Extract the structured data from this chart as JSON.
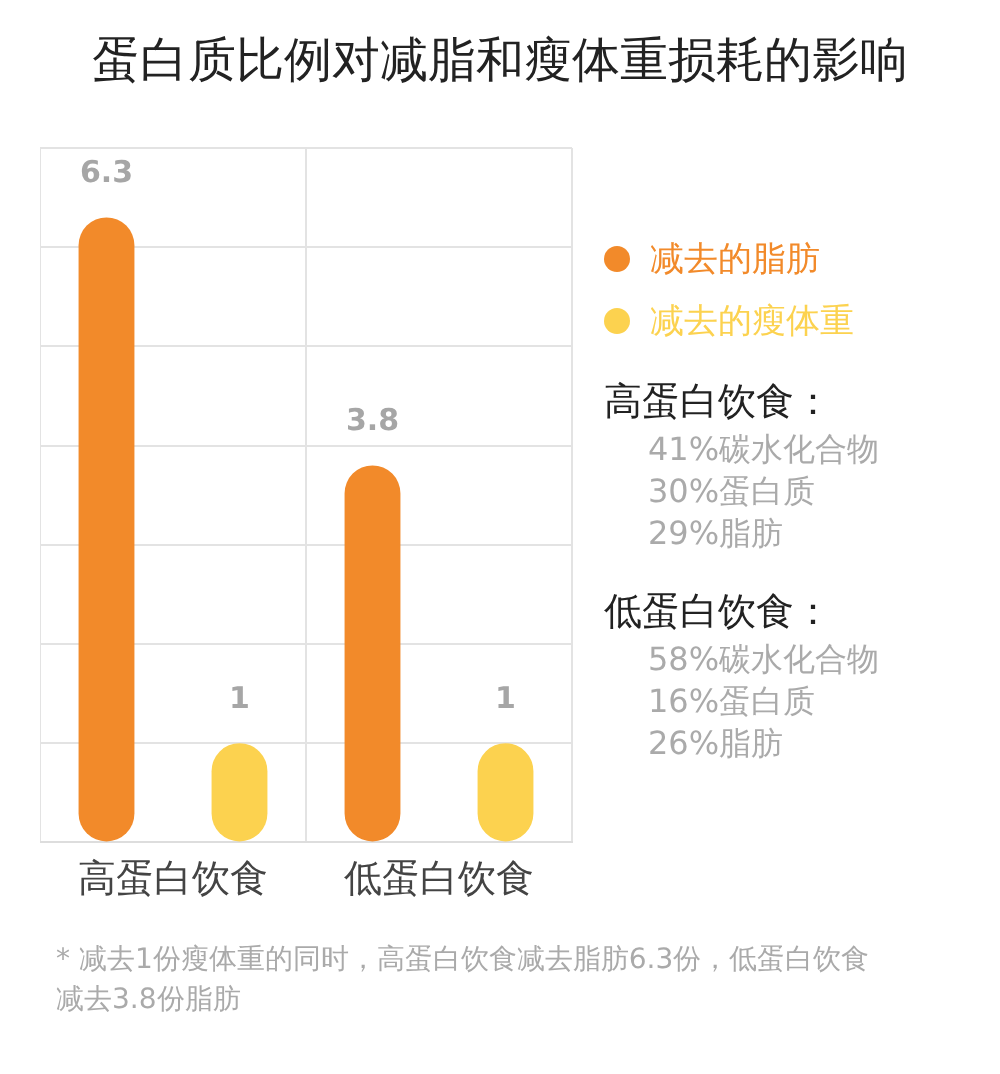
{
  "chart_data": {
    "type": "bar",
    "title": "蛋白质比例对减脂和瘦体重损耗的影响",
    "categories": [
      "高蛋白饮食",
      "低蛋白饮食"
    ],
    "series": [
      {
        "name": "减去的脂肪",
        "color": "#f28a2a",
        "values": [
          6.3,
          3.8
        ]
      },
      {
        "name": "减去的瘦体重",
        "color": "#fcd24f",
        "values": [
          1,
          1
        ]
      }
    ],
    "ylim": [
      0,
      7
    ],
    "yticks": [
      {
        "value": 0,
        "label": null
      },
      {
        "value": 1,
        "label": null
      },
      {
        "value": 2,
        "label": null
      },
      {
        "value": 3,
        "label": null
      },
      {
        "value": 4,
        "label": null
      },
      {
        "value": 5,
        "label": null
      },
      {
        "value": 6,
        "label": null
      },
      {
        "value": 7,
        "label": null
      }
    ],
    "tick_labels": "x",
    "grid": true,
    "data_labels": true,
    "legend": "right",
    "annotations": [
      "高蛋白饮食：",
      "41%碳水化合物",
      "30%蛋白质",
      "29%脂肪",
      "低蛋白饮食：",
      "58%碳水化合物",
      "16%蛋白质",
      "26%脂肪",
      "* 减去1份瘦体重的同时，高蛋白饮食减去脂肪6.3份，低蛋白饮食减去3.8份脂肪"
    ]
  }
}
